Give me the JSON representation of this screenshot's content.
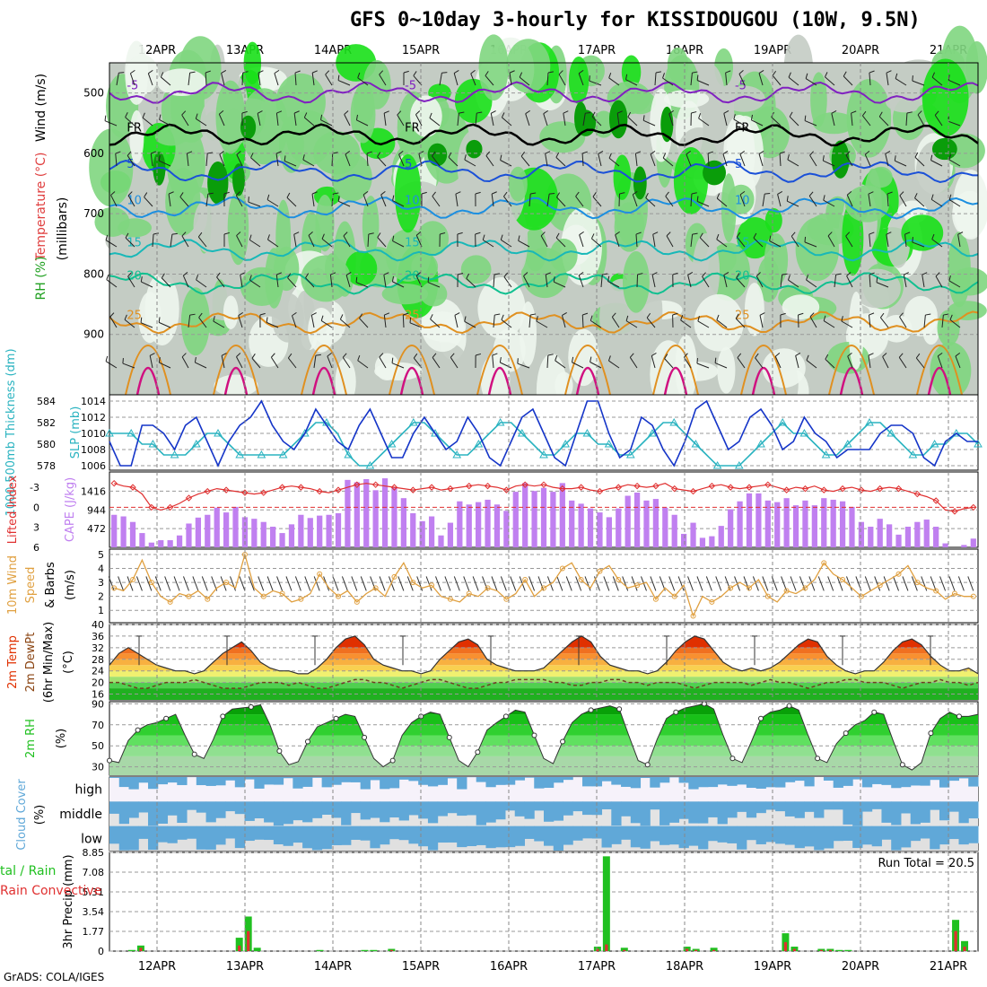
{
  "title": "GFS 0~10day 3-hourly for KISSIDOUGOU (10W, 9.5N)",
  "footer": "GrADS: COLA/IGES",
  "dates": [
    "12APR",
    "13APR",
    "14APR",
    "15APR",
    "16APR",
    "17APR",
    "18APR",
    "19APR",
    "20APR",
    "21APR"
  ],
  "colors": {
    "rh_dark": "#0a9d0a",
    "rh_green": "#18e018",
    "rh_mid": "#7fd67f",
    "rh_gray": "#c4ccc4",
    "rh_light": "#eef6ee",
    "slp": "#1535c8",
    "thickness": "#2ab3c0",
    "cape": "#c080f0",
    "lifted": "#e03030",
    "wind": "#e0a040",
    "temp_top": "#e03000",
    "rh2m": "#20c020",
    "cloud": "#60a8d8",
    "precip_total": "#20c020",
    "precip_conv": "#e03030"
  },
  "chart_data": [
    {
      "type": "heatmap",
      "panel": "upper-air",
      "ylabel_parts": [
        "RH (%)",
        "Temperature (°C)",
        "Wind (m/s)"
      ],
      "yunit": "(millibars)",
      "y_ticks": [
        500,
        600,
        700,
        800,
        900
      ],
      "ylim": [
        1000,
        450
      ],
      "isotherm_labels": [
        "-5",
        "FR",
        "5",
        "10",
        "15",
        "20",
        "25"
      ],
      "isotherms": [
        {
          "label": "-5",
          "pressure": 500
        },
        {
          "label": "FR",
          "pressure": 570
        },
        {
          "label": "5",
          "pressure": 630
        },
        {
          "label": "10",
          "pressure": 690
        },
        {
          "label": "15",
          "pressure": 760
        },
        {
          "label": "20",
          "pressure": 815
        },
        {
          "label": "25",
          "pressure": 880
        }
      ]
    },
    {
      "type": "line",
      "panel": "slp-thickness",
      "ylabel_left": "1000-500mb Thickness (dm)",
      "ylabel_right": "SLP (mb)",
      "left_ticks": [
        578,
        580,
        582,
        584
      ],
      "right_ticks": [
        1006,
        1008,
        1010,
        1012,
        1014
      ],
      "series": [
        {
          "name": "SLP (mb)",
          "values": [
            1009,
            1006,
            1006,
            1011,
            1011,
            1010,
            1008,
            1011,
            1012,
            1009,
            1006,
            1009,
            1011,
            1012,
            1014,
            1011,
            1009,
            1008,
            1010,
            1013,
            1011,
            1009,
            1008,
            1011,
            1013,
            1010,
            1007,
            1007,
            1010,
            1012,
            1010,
            1008,
            1009,
            1012,
            1010,
            1007,
            1006,
            1009,
            1012,
            1013,
            1010,
            1007,
            1006,
            1010,
            1014,
            1014,
            1010,
            1007,
            1008,
            1012,
            1011,
            1008,
            1006,
            1009,
            1013,
            1014,
            1011,
            1008,
            1009,
            1012,
            1013,
            1011,
            1008,
            1009,
            1012,
            1010,
            1009,
            1007,
            1008,
            1008,
            1008,
            1010,
            1011,
            1011,
            1010,
            1007,
            1006,
            1009,
            1010,
            1009,
            1009
          ]
        },
        {
          "name": "1000-500mb Thickness (dm)",
          "values": [
            581,
            581,
            581,
            580,
            580,
            579,
            579,
            579,
            580,
            581,
            581,
            580,
            579,
            579,
            579,
            579,
            579,
            580,
            581,
            582,
            582,
            581,
            579,
            578,
            578,
            579,
            580,
            581,
            582,
            582,
            581,
            580,
            579,
            579,
            580,
            581,
            582,
            582,
            581,
            580,
            579,
            579,
            580,
            581,
            581,
            580,
            580,
            579,
            579,
            580,
            581,
            582,
            582,
            581,
            580,
            579,
            578,
            578,
            578,
            579,
            580,
            581,
            582,
            581,
            581,
            580,
            579,
            579,
            580,
            581,
            582,
            582,
            581,
            580,
            579,
            579,
            580,
            580,
            581,
            581,
            580
          ]
        }
      ]
    },
    {
      "type": "bar",
      "panel": "cape-li",
      "ylabel_left": "Lifted Index",
      "ylabel_right": "CAPE (J/kg)",
      "left_ticks": [
        "-3",
        "0",
        "3",
        "6"
      ],
      "right_ticks": [
        472,
        944,
        1416
      ],
      "series": [
        {
          "name": "CAPE (J/kg)",
          "values": [
            820,
            780,
            640,
            360,
            120,
            180,
            180,
            300,
            600,
            750,
            820,
            1000,
            880,
            1020,
            760,
            720,
            640,
            520,
            360,
            580,
            820,
            740,
            800,
            820,
            860,
            1700,
            1640,
            1720,
            1440,
            1740,
            1520,
            1240,
            860,
            660,
            780,
            300,
            620,
            1160,
            1080,
            1140,
            1200,
            1080,
            920,
            1400,
            1620,
            1420,
            1500,
            1400,
            1620,
            1180,
            1100,
            980,
            880,
            760,
            980,
            1300,
            1380,
            1180,
            1220,
            1000,
            820,
            340,
            620,
            240,
            280,
            540,
            960,
            1160,
            1360,
            1360,
            1180,
            1140,
            1240,
            1060,
            1180,
            1060,
            1240,
            1200,
            1160,
            1020,
            640,
            520,
            720,
            580,
            320,
            520,
            640,
            700,
            520,
            100,
            0,
            60,
            220
          ]
        },
        {
          "name": "Lifted Index",
          "values": [
            -3.6,
            -3.2,
            -3.0,
            -2.0,
            0.0,
            0.4,
            0.0,
            -0.6,
            -1.4,
            -2.0,
            -2.4,
            -2.8,
            -2.6,
            -2.4,
            -2.2,
            -2.0,
            -2.2,
            -2.6,
            -3.0,
            -3.2,
            -3.0,
            -2.8,
            -2.4,
            -2.2,
            -2.6,
            -3.0,
            -3.4,
            -3.6,
            -3.4,
            -3.2,
            -3.0,
            -2.8,
            -2.6,
            -2.8,
            -3.0,
            -2.6,
            -2.8,
            -3.0,
            -3.2,
            -3.4,
            -3.2,
            -3.0,
            -2.6,
            -3.2,
            -3.4,
            -3.2,
            -3.4,
            -3.0,
            -2.8,
            -2.8,
            -3.0,
            -2.6,
            -2.4,
            -2.8,
            -3.0,
            -3.4,
            -3.2,
            -3.0,
            -3.2,
            -3.6,
            -2.8,
            -2.6,
            -2.4,
            -2.8,
            -3.2,
            -3.4,
            -3.0,
            -2.8,
            -3.0,
            -3.2,
            -3.4,
            -3.0,
            -2.6,
            -3.0,
            -2.8,
            -3.2,
            -2.6,
            -2.4,
            -2.8,
            -3.0,
            -2.6,
            -2.4,
            -2.8,
            -3.0,
            -2.8,
            -2.4,
            -2.0,
            -1.6,
            -1.0,
            0.4,
            0.6,
            0.2,
            0.0
          ]
        }
      ]
    },
    {
      "type": "line",
      "panel": "wind10m",
      "ylabel": "10m Wind Speed & Barbs",
      "yunit": "(m/s)",
      "y_ticks": [
        1,
        2,
        3,
        4,
        5
      ],
      "series": [
        {
          "name": "10m Wind Speed",
          "values": [
            2.6,
            2.4,
            3.2,
            4.6,
            3.0,
            2.0,
            1.6,
            2.2,
            2.0,
            2.4,
            1.8,
            2.6,
            3.0,
            2.6,
            5.0,
            2.6,
            2.0,
            2.4,
            2.2,
            1.6,
            1.8,
            2.2,
            3.6,
            2.6,
            2.0,
            2.4,
            1.6,
            2.2,
            2.6,
            2.0,
            3.4,
            4.4,
            3.0,
            2.6,
            2.8,
            2.0,
            1.8,
            1.6,
            2.2,
            2.0,
            2.6,
            2.4,
            1.8,
            2.2,
            3.2,
            2.0,
            2.6,
            3.0,
            4.0,
            4.4,
            3.2,
            2.6,
            3.8,
            4.2,
            3.2,
            2.6,
            2.8,
            3.0,
            1.8,
            2.6,
            2.0,
            2.8,
            0.6,
            2.0,
            1.6,
            2.0,
            2.6,
            3.0,
            2.6,
            3.2,
            2.0,
            1.6,
            2.4,
            2.2,
            2.6,
            3.2,
            4.4,
            3.6,
            3.2,
            2.6,
            2.0,
            2.4,
            2.8,
            3.2,
            3.6,
            4.2,
            3.0,
            2.6,
            2.4,
            1.8,
            2.2,
            2.0,
            2.0
          ]
        }
      ]
    },
    {
      "type": "area",
      "panel": "temp2m",
      "ylabel": "2m Temp 2m DewPt (6hr Min/Max)",
      "yunit": "(°C)",
      "y_ticks": [
        16,
        20,
        24,
        28,
        32,
        36,
        40
      ],
      "series": [
        {
          "name": "2m Temp",
          "values": [
            26,
            30,
            32,
            30,
            28,
            26,
            25,
            24,
            24,
            23,
            24,
            27,
            30,
            32,
            34,
            31,
            27,
            25,
            24,
            24,
            23,
            23,
            25,
            28,
            32,
            35,
            36,
            33,
            28,
            26,
            25,
            24,
            24,
            23,
            24,
            28,
            31,
            34,
            35,
            33,
            28,
            26,
            25,
            24,
            24,
            24,
            25,
            28,
            31,
            34,
            36,
            34,
            29,
            26,
            25,
            24,
            24,
            23,
            24,
            27,
            31,
            34,
            36,
            35,
            31,
            27,
            25,
            24,
            25,
            24,
            25,
            27,
            30,
            33,
            35,
            34,
            29,
            26,
            24,
            23,
            24,
            24,
            27,
            31,
            34,
            35,
            33,
            29,
            26,
            24,
            24,
            25,
            23
          ]
        },
        {
          "name": "2m DewPt",
          "values": [
            20,
            20,
            19,
            18,
            18,
            19,
            20,
            20,
            20,
            21,
            20,
            19,
            18,
            18,
            18,
            19,
            20,
            20,
            20,
            19,
            20,
            19,
            18,
            18,
            19,
            20,
            21,
            21,
            20,
            20,
            19,
            18,
            19,
            20,
            21,
            21,
            20,
            19,
            18,
            18,
            19,
            20,
            20,
            21,
            21,
            21,
            21,
            20,
            20,
            19,
            19,
            20,
            20,
            21,
            21,
            20,
            20,
            19,
            20,
            20,
            20,
            19,
            18,
            19,
            20,
            20,
            20,
            20,
            19,
            20,
            21,
            20,
            20,
            19,
            18,
            19,
            20,
            20,
            21,
            21,
            20,
            20,
            20,
            19,
            18,
            19,
            20,
            20,
            21,
            20,
            20,
            19,
            20
          ]
        }
      ]
    },
    {
      "type": "area",
      "panel": "rh2m",
      "ylabel": "2m RH",
      "yunit": "(%)",
      "y_ticks": [
        30,
        50,
        70,
        90
      ],
      "series": [
        {
          "name": "2m RH",
          "values": [
            36,
            34,
            55,
            65,
            70,
            72,
            76,
            80,
            60,
            42,
            38,
            56,
            78,
            85,
            86,
            87,
            89,
            70,
            45,
            32,
            35,
            54,
            68,
            72,
            76,
            80,
            78,
            58,
            38,
            30,
            36,
            60,
            72,
            78,
            82,
            80,
            58,
            36,
            30,
            44,
            65,
            72,
            78,
            84,
            82,
            60,
            38,
            33,
            54,
            72,
            80,
            84,
            86,
            88,
            85,
            60,
            36,
            32,
            56,
            76,
            82,
            86,
            88,
            90,
            85,
            60,
            38,
            34,
            54,
            76,
            82,
            84,
            88,
            84,
            60,
            38,
            34,
            52,
            62,
            70,
            74,
            82,
            80,
            55,
            32,
            27,
            34,
            62,
            76,
            82,
            78,
            78,
            80
          ]
        }
      ]
    },
    {
      "type": "heatmap",
      "panel": "cloud",
      "ylabel": "Cloud Cover (%)",
      "levels": [
        "high",
        "middle",
        "low"
      ]
    },
    {
      "type": "bar",
      "panel": "precip",
      "ylabel": "3hr Precip (mm)",
      "ylabel_side": "Total / Rain Convective",
      "y_ticks": [
        0,
        1.77,
        3.54,
        5.31,
        7.08,
        8.85
      ],
      "annotation": "Run Total = 20.5",
      "series": [
        {
          "name": "Total",
          "values": [
            0,
            0,
            0.1,
            0.5,
            0,
            0,
            0,
            0,
            0,
            0,
            0,
            0,
            0,
            0,
            1.2,
            3.1,
            0.3,
            0,
            0,
            0,
            0,
            0,
            0,
            0.1,
            0,
            0,
            0,
            0,
            0.1,
            0.1,
            0,
            0.2,
            0,
            0,
            0,
            0,
            0,
            0,
            0,
            0,
            0,
            0,
            0,
            0,
            0,
            0,
            0,
            0,
            0,
            0,
            0,
            0,
            0,
            0,
            0.4,
            8.5,
            0,
            0.3,
            0,
            0,
            0,
            0,
            0,
            0,
            0.4,
            0.2,
            0,
            0.3,
            0,
            0,
            0,
            0,
            0,
            0,
            0,
            1.6,
            0.4,
            0,
            0,
            0.2,
            0.2,
            0.1,
            0.1,
            0,
            0,
            0,
            0,
            0,
            0,
            0,
            0,
            0,
            0,
            0,
            2.8,
            0.9,
            0
          ]
        },
        {
          "name": "Convective",
          "values": [
            0,
            0,
            0,
            0.3,
            0,
            0,
            0,
            0,
            0,
            0,
            0,
            0,
            0,
            0,
            0.5,
            1.8,
            0,
            0,
            0,
            0,
            0,
            0,
            0,
            0,
            0,
            0,
            0,
            0,
            0,
            0,
            0,
            0.1,
            0,
            0,
            0,
            0,
            0,
            0,
            0,
            0,
            0,
            0,
            0,
            0,
            0,
            0,
            0,
            0,
            0,
            0,
            0,
            0,
            0,
            0,
            0.2,
            0.6,
            0,
            0.1,
            0,
            0,
            0,
            0,
            0,
            0,
            0.2,
            0.1,
            0,
            0.1,
            0,
            0,
            0,
            0,
            0,
            0,
            0,
            0.8,
            0.2,
            0,
            0,
            0.1,
            0.1,
            0,
            0,
            0,
            0,
            0,
            0,
            0,
            0,
            0,
            0,
            0,
            0,
            0,
            1.8,
            0.4,
            0
          ]
        }
      ]
    }
  ]
}
